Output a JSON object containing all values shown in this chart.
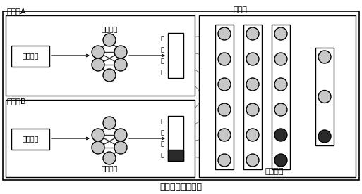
{
  "title": "纵向联邦推荐系统",
  "label_party_a": "参与方A",
  "label_party_b": "参与方B",
  "label_collab": "协作方",
  "label_top_model": "顶部模型",
  "label_sample_a": "商品样本",
  "label_sample_b": "商品样本",
  "label_local_a": "本地模型",
  "label_local_b": "本地模型",
  "label_embed_a": [
    "嵌",
    "入",
    "表",
    "示"
  ],
  "label_embed_b": [
    "嵌",
    "入",
    "表",
    "示"
  ],
  "bg_color": "#ffffff",
  "box_edge_color": "#000000",
  "node_color_light": "#c8c8c8",
  "node_color_dark": "#2a2a2a",
  "node_color_mid": "#888888",
  "line_color": "#888888",
  "font_size_title": 9,
  "font_size_label": 8,
  "font_size_small": 7,
  "font_size_embed": 6
}
